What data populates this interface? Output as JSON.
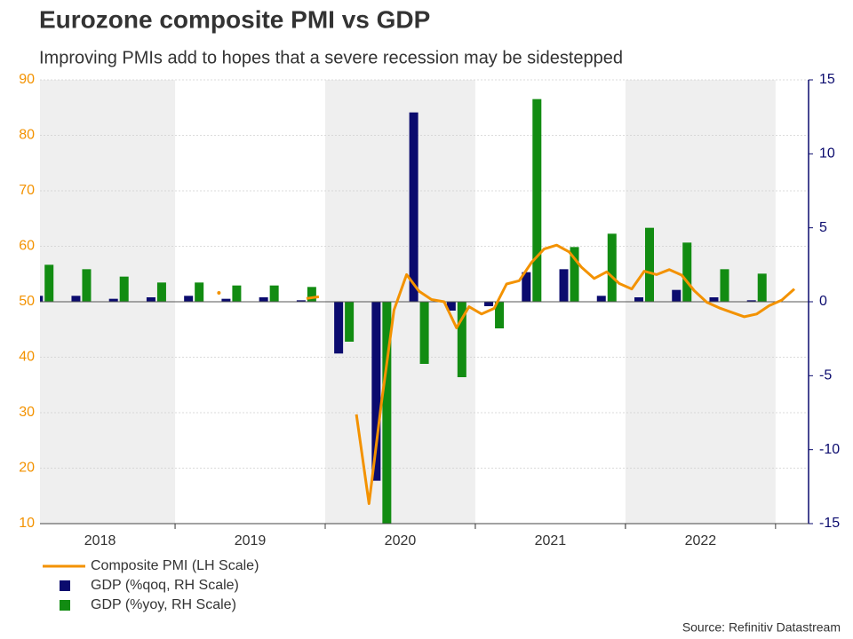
{
  "chart_data": {
    "type": "combo",
    "title": "Eurozone composite PMI vs GDP",
    "subtitle": "Improving PMIs add to hopes that a severe recession may be sidestepped",
    "source": "Source: Refinitiv Datastream",
    "xlim": [
      2018.1,
      2023.22
    ],
    "xticks": [
      {
        "value": 2018.5,
        "label": "2018"
      },
      {
        "value": 2019.5,
        "label": "2019"
      },
      {
        "value": 2020.5,
        "label": "2020"
      },
      {
        "value": 2021.5,
        "label": "2021"
      },
      {
        "value": 2022.5,
        "label": "2022"
      }
    ],
    "shaded_years": [
      2018,
      2020,
      2022
    ],
    "ylim": [
      10,
      90
    ],
    "yticks": [
      10,
      20,
      30,
      40,
      50,
      60,
      70,
      80,
      90
    ],
    "y2lim": [
      -15,
      15
    ],
    "y2ticks": [
      -15,
      -10,
      -5,
      0,
      5,
      10,
      15
    ],
    "grid": true,
    "legend": "bottom-left",
    "series": [
      {
        "name": "Composite PMI (LH Scale)",
        "type": "line",
        "axis": "y",
        "color": "#f39200",
        "x": [
          2019.292,
          2019.375,
          2019.458,
          2019.542,
          2019.625,
          2019.708,
          2019.792,
          2019.875,
          2019.958,
          2020.042,
          2020.125,
          2020.208,
          2020.292,
          2020.375,
          2020.458,
          2020.542,
          2020.625,
          2020.708,
          2020.792,
          2020.875,
          2020.958,
          2021.042,
          2021.125,
          2021.208,
          2021.292,
          2021.375,
          2021.458,
          2021.542,
          2021.625,
          2021.708,
          2021.792,
          2021.875,
          2021.958,
          2022.042,
          2022.125,
          2022.208,
          2022.292,
          2022.375,
          2022.458,
          2022.542,
          2022.625,
          2022.708,
          2022.792,
          2022.875,
          2022.958,
          2023.042,
          2023.125
        ],
        "values": [
          51.6,
          null,
          null,
          null,
          null,
          null,
          null,
          50.6,
          50.9,
          null,
          null,
          29.7,
          13.6,
          31.9,
          48.5,
          54.9,
          51.9,
          50.4,
          50.0,
          45.3,
          49.1,
          47.8,
          48.8,
          53.2,
          53.8,
          57.1,
          59.5,
          60.2,
          59.0,
          56.2,
          54.2,
          55.4,
          53.3,
          52.3,
          55.5,
          54.9,
          55.8,
          54.8,
          52.0,
          49.9,
          48.9,
          48.1,
          47.3,
          47.8,
          49.3,
          50.3,
          52.3
        ]
      },
      {
        "name": "GDP (%qoq, RH Scale)",
        "type": "bar",
        "axis": "y2",
        "color": "#0b0b6e",
        "x": [
          2018.125,
          2018.375,
          2018.625,
          2018.875,
          2019.125,
          2019.375,
          2019.625,
          2019.875,
          2020.125,
          2020.375,
          2020.625,
          2020.875,
          2021.125,
          2021.375,
          2021.625,
          2021.875,
          2022.125,
          2022.375,
          2022.625,
          2022.875
        ],
        "values": [
          0.4,
          0.4,
          0.2,
          0.3,
          0.4,
          0.2,
          0.3,
          0.1,
          -3.5,
          -12.1,
          12.8,
          -0.6,
          -0.3,
          2.0,
          2.2,
          0.4,
          0.3,
          0.8,
          0.3,
          0.1
        ]
      },
      {
        "name": "GDP (%yoy, RH Scale)",
        "type": "bar",
        "axis": "y2",
        "color": "#128c12",
        "x": [
          2018.125,
          2018.375,
          2018.625,
          2018.875,
          2019.125,
          2019.375,
          2019.625,
          2019.875,
          2020.125,
          2020.375,
          2020.625,
          2020.875,
          2021.125,
          2021.375,
          2021.625,
          2021.875,
          2022.125,
          2022.375,
          2022.625,
          2022.875
        ],
        "values": [
          2.5,
          2.2,
          1.7,
          1.3,
          1.3,
          1.1,
          1.1,
          1.0,
          -2.7,
          -15,
          -4.2,
          -5.1,
          -1.8,
          13.7,
          3.7,
          4.6,
          5.0,
          4.0,
          2.2,
          1.9
        ]
      }
    ]
  }
}
